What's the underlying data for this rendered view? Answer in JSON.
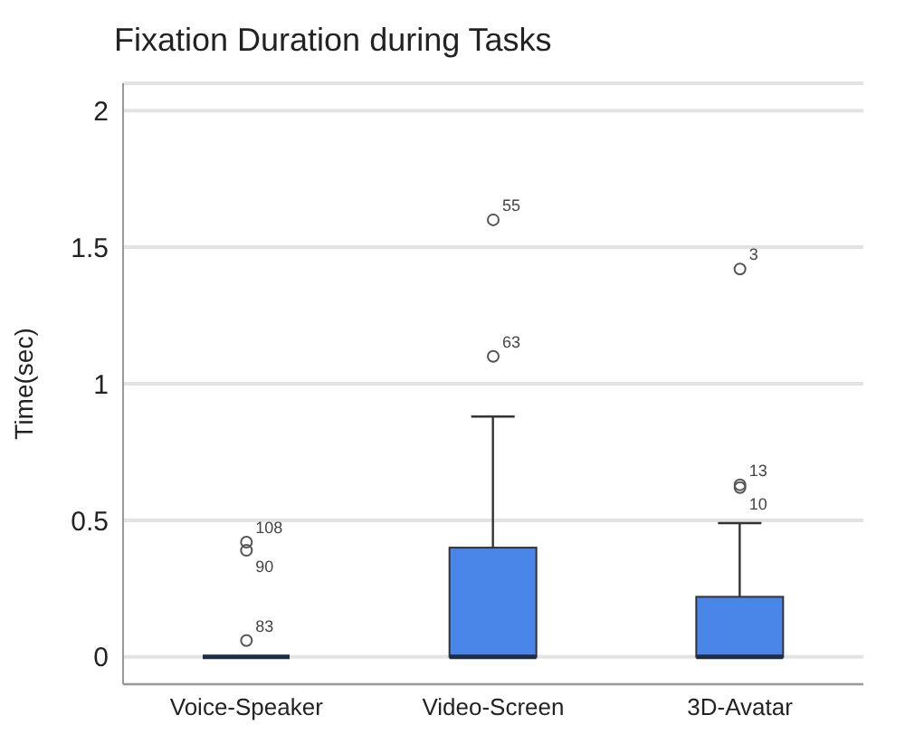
{
  "chart_data": {
    "type": "box",
    "title": "Fixation Duration during Tasks",
    "ylabel": "Time(sec)",
    "categories": [
      "Voice-Speaker",
      "Video-Screen",
      "3D-Avatar"
    ],
    "boxes": [
      {
        "low": 0,
        "q1": 0,
        "median": 0,
        "q3": 0,
        "high": 0,
        "outliers": [
          0.42,
          0.39,
          0.06
        ]
      },
      {
        "low": 0,
        "q1": 0,
        "median": 0,
        "q3": 0.4,
        "high": 0.88,
        "outliers": [
          1.1,
          1.6
        ]
      },
      {
        "low": 0,
        "q1": 0,
        "median": 0,
        "q3": 0.22,
        "high": 0.49,
        "outliers": [
          0.63,
          0.62,
          1.42
        ]
      }
    ],
    "colors": [
      "#1f2d44",
      "#4a86e8",
      "#4a86e8"
    ],
    "ylim": [
      -0.1,
      2.1
    ],
    "yticks": [
      0,
      0.5,
      1,
      1.5,
      2
    ],
    "grid": "y",
    "annotations": [
      "108",
      "90",
      "83",
      "63",
      "55",
      "13",
      "10",
      "3"
    ]
  }
}
